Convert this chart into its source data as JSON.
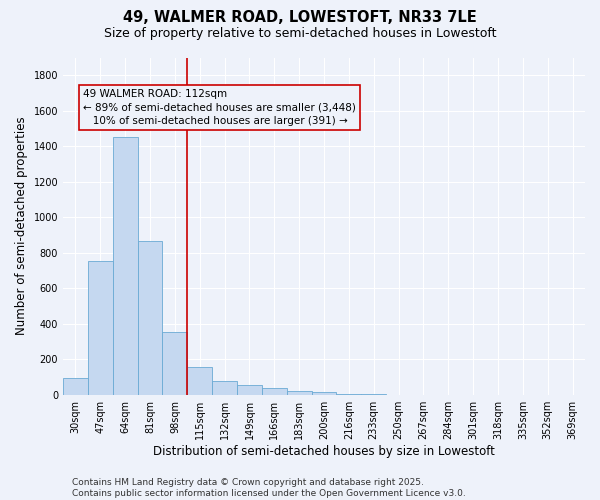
{
  "title_line1": "49, WALMER ROAD, LOWESTOFT, NR33 7LE",
  "title_line2": "Size of property relative to semi-detached houses in Lowestoft",
  "xlabel": "Distribution of semi-detached houses by size in Lowestoft",
  "ylabel": "Number of semi-detached properties",
  "categories": [
    "30sqm",
    "47sqm",
    "64sqm",
    "81sqm",
    "98sqm",
    "115sqm",
    "132sqm",
    "149sqm",
    "166sqm",
    "183sqm",
    "200sqm",
    "216sqm",
    "233sqm",
    "250sqm",
    "267sqm",
    "284sqm",
    "301sqm",
    "318sqm",
    "335sqm",
    "352sqm",
    "369sqm"
  ],
  "values": [
    95,
    755,
    1450,
    865,
    355,
    155,
    80,
    55,
    35,
    22,
    15,
    5,
    2,
    1,
    0,
    0,
    0,
    0,
    0,
    0,
    0
  ],
  "bar_color": "#c5d8f0",
  "bar_edge_color": "#6aaad4",
  "vline_index": 4.5,
  "vline_color": "#cc0000",
  "annotation_line1": "49 WALMER ROAD: 112sqm",
  "annotation_line2": "← 89% of semi-detached houses are smaller (3,448)",
  "annotation_line3": "   10% of semi-detached houses are larger (391) →",
  "ylim": [
    0,
    1900
  ],
  "yticks": [
    0,
    200,
    400,
    600,
    800,
    1000,
    1200,
    1400,
    1600,
    1800
  ],
  "footer_text": "Contains HM Land Registry data © Crown copyright and database right 2025.\nContains public sector information licensed under the Open Government Licence v3.0.",
  "bg_color": "#eef2fa",
  "grid_color": "#ffffff",
  "title_fontsize": 10.5,
  "subtitle_fontsize": 9,
  "axis_label_fontsize": 8.5,
  "tick_fontsize": 7,
  "footer_fontsize": 6.5,
  "annotation_fontsize": 7.5
}
